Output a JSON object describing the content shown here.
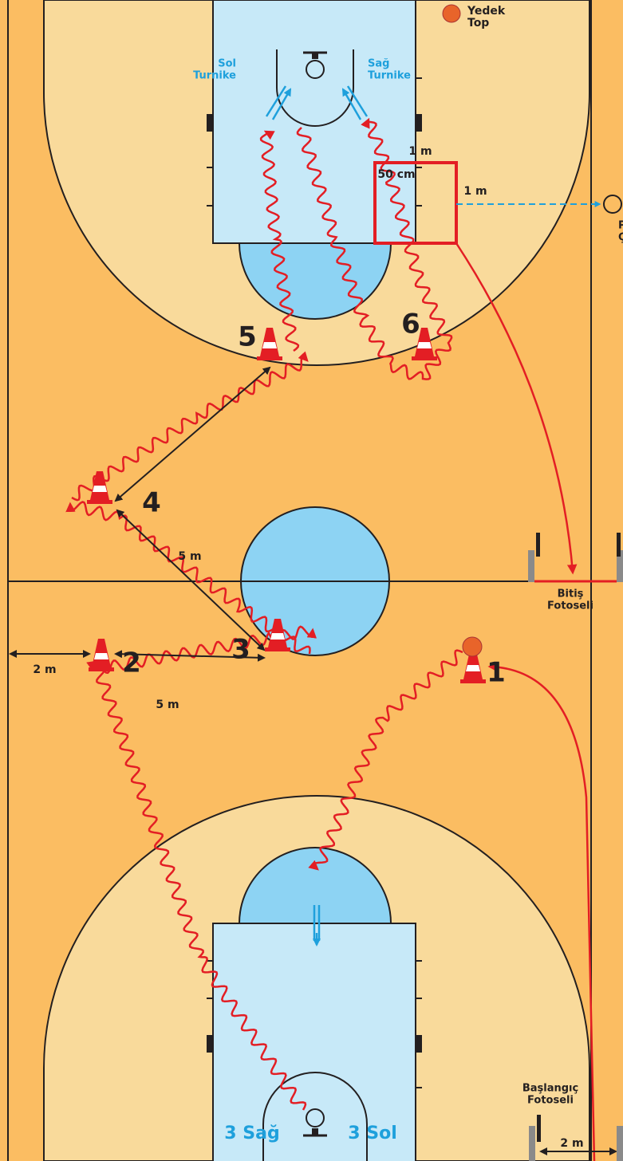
{
  "court": {
    "spare_ball": [
      "Yedek",
      "Top"
    ],
    "left_layup": [
      "Sol",
      "Turnike"
    ],
    "right_layup": [
      "Sağ",
      "Turnike"
    ],
    "box_top": "1 m",
    "box_inner": "50 cm",
    "box_side": "1 m",
    "pass_hoop": [
      "Pas",
      "Çemberi"
    ],
    "finish_sensor": [
      "Bitiş",
      "Fotoseli"
    ],
    "start_sensor": [
      "Başlangıç",
      "Fotoseli"
    ],
    "start_gap": "2 m",
    "side_gap": "2 m",
    "dist_4_3": "5 m",
    "dist_3_2": "5 m",
    "start_right": "3 Sağ",
    "start_left": "3 Sol"
  },
  "cones": [
    "1",
    "2",
    "3",
    "4",
    "5",
    "6"
  ]
}
